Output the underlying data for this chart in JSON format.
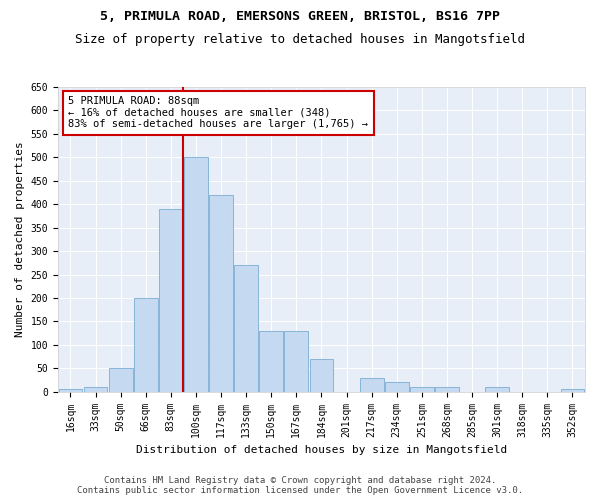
{
  "title_line1": "5, PRIMULA ROAD, EMERSONS GREEN, BRISTOL, BS16 7PP",
  "title_line2": "Size of property relative to detached houses in Mangotsfield",
  "xlabel": "Distribution of detached houses by size in Mangotsfield",
  "ylabel": "Number of detached properties",
  "bar_color": "#c5d9f0",
  "bar_edge_color": "#7aadd4",
  "background_color": "#e8eef8",
  "grid_color": "#ffffff",
  "annotation_line1": "5 PRIMULA ROAD: 88sqm",
  "annotation_line2": "← 16% of detached houses are smaller (348)",
  "annotation_line3": "83% of semi-detached houses are larger (1,765) →",
  "property_line_x": 4,
  "property_line_color": "#cc0000",
  "categories": [
    "16sqm",
    "33sqm",
    "50sqm",
    "66sqm",
    "83sqm",
    "100sqm",
    "117sqm",
    "133sqm",
    "150sqm",
    "167sqm",
    "184sqm",
    "201sqm",
    "217sqm",
    "234sqm",
    "251sqm",
    "268sqm",
    "285sqm",
    "301sqm",
    "318sqm",
    "335sqm",
    "352sqm"
  ],
  "values": [
    5,
    10,
    50,
    200,
    390,
    500,
    420,
    270,
    130,
    130,
    70,
    0,
    30,
    20,
    10,
    10,
    0,
    10,
    0,
    0,
    5
  ],
  "ylim": [
    0,
    650
  ],
  "yticks": [
    0,
    50,
    100,
    150,
    200,
    250,
    300,
    350,
    400,
    450,
    500,
    550,
    600,
    650
  ],
  "footnote_line1": "Contains HM Land Registry data © Crown copyright and database right 2024.",
  "footnote_line2": "Contains public sector information licensed under the Open Government Licence v3.0.",
  "fig_width": 6.0,
  "fig_height": 5.0,
  "title_fontsize": 9.5,
  "subtitle_fontsize": 9,
  "axis_label_fontsize": 8,
  "tick_fontsize": 7,
  "annotation_fontsize": 7.5,
  "footnote_fontsize": 6.5
}
